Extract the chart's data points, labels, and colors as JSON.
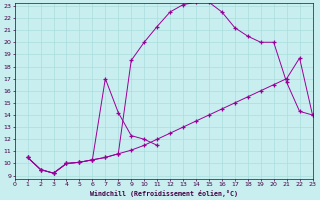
{
  "xlabel": "Windchill (Refroidissement éolien,°C)",
  "bg_color": "#c8eef0",
  "grid_color": "#aadddd",
  "line_color": "#990099",
  "xlim": [
    0,
    23
  ],
  "ylim": [
    9,
    23
  ],
  "yticks": [
    9,
    10,
    11,
    12,
    13,
    14,
    15,
    16,
    17,
    18,
    19,
    20,
    21,
    22,
    23
  ],
  "xticks": [
    0,
    1,
    2,
    3,
    4,
    5,
    6,
    7,
    8,
    9,
    10,
    11,
    12,
    13,
    14,
    15,
    16,
    17,
    18,
    19,
    20,
    21,
    22,
    23
  ],
  "curve1_x": [
    1,
    2,
    3,
    4,
    5,
    6,
    7,
    8,
    9,
    10,
    11
  ],
  "curve1_y": [
    10.5,
    9.5,
    9.2,
    10.0,
    10.1,
    10.3,
    17.0,
    14.2,
    12.3,
    12.0,
    11.5
  ],
  "curve2_x": [
    1,
    2,
    3,
    4,
    5,
    6,
    7,
    8,
    9,
    10,
    11,
    12,
    13,
    14,
    15,
    16,
    17,
    18,
    19,
    20,
    21,
    22,
    23
  ],
  "curve2_y": [
    10.5,
    9.5,
    9.2,
    10.0,
    10.1,
    10.3,
    10.5,
    10.8,
    18.5,
    20.0,
    21.3,
    22.5,
    23.1,
    23.3,
    23.3,
    22.5,
    21.2,
    20.5,
    20.0,
    20.0,
    16.7,
    14.3,
    14.0
  ],
  "curve3_x": [
    1,
    2,
    3,
    4,
    5,
    6,
    7,
    8,
    9,
    10,
    11,
    12,
    13,
    14,
    15,
    16,
    17,
    18,
    19,
    20,
    21,
    22,
    23
  ],
  "curve3_y": [
    10.5,
    9.5,
    9.2,
    10.0,
    10.1,
    10.3,
    10.5,
    10.8,
    11.1,
    11.5,
    12.0,
    12.5,
    13.0,
    13.5,
    14.0,
    14.5,
    15.0,
    15.5,
    16.0,
    16.5,
    17.0,
    18.7,
    14.0
  ]
}
